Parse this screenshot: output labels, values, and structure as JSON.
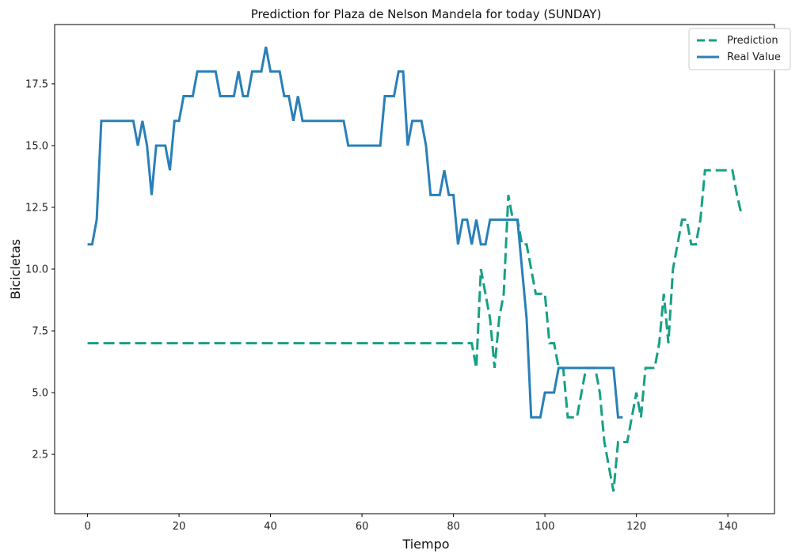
{
  "chart_data": {
    "type": "line",
    "title": "Prediction for Plaza de Nelson Mandela for today (SUNDAY)",
    "xlabel": "Tiempo",
    "ylabel": "Bicicletas",
    "xlim": [
      -7.2,
      150.2
    ],
    "ylim": [
      0.1,
      19.9
    ],
    "xticks": [
      0,
      20,
      40,
      60,
      80,
      100,
      120,
      140
    ],
    "xtick_labels": [
      "0",
      "20",
      "40",
      "60",
      "80",
      "100",
      "120",
      "140"
    ],
    "yticks": [
      2.5,
      5.0,
      7.5,
      10.0,
      12.5,
      15.0,
      17.5
    ],
    "ytick_labels": [
      "2.5",
      "5.0",
      "7.5",
      "10.0",
      "12.5",
      "15.0",
      "17.5"
    ],
    "grid": false,
    "legend": {
      "position": "top-right"
    },
    "series": [
      {
        "name": "Prediction",
        "color": "#16a085",
        "style": "dashed",
        "x": [
          0,
          84,
          85,
          86,
          87,
          88,
          89,
          90,
          91,
          92,
          93,
          94,
          95,
          96,
          97,
          98,
          99,
          100,
          101,
          102,
          103,
          104,
          105,
          106,
          107,
          108,
          109,
          110,
          111,
          112,
          113,
          114,
          115,
          116,
          117,
          118,
          119,
          120,
          121,
          122,
          123,
          124,
          125,
          126,
          127,
          128,
          129,
          130,
          131,
          132,
          133,
          134,
          135,
          136,
          137,
          138,
          139,
          140,
          141,
          142,
          143
        ],
        "y": [
          7,
          7,
          6,
          10,
          9,
          8,
          6,
          8,
          9,
          13,
          12,
          12,
          11,
          11,
          10,
          9,
          9,
          9,
          7,
          7,
          6,
          6,
          4,
          4,
          4,
          5,
          6,
          6,
          6,
          5,
          3,
          2,
          1,
          3,
          3,
          3,
          4,
          5,
          4,
          6,
          6,
          6,
          7,
          9,
          7,
          10,
          11,
          12,
          12,
          11,
          11,
          12,
          14,
          14,
          14,
          14,
          14,
          14,
          14,
          13,
          12.2
        ]
      },
      {
        "name": "Real Value",
        "color": "#2980b9",
        "style": "solid",
        "x": [
          0,
          1,
          2,
          3,
          4,
          5,
          6,
          7,
          8,
          9,
          10,
          11,
          12,
          13,
          14,
          15,
          16,
          17,
          18,
          19,
          20,
          21,
          22,
          23,
          24,
          25,
          26,
          27,
          28,
          29,
          30,
          31,
          32,
          33,
          34,
          35,
          36,
          37,
          38,
          39,
          40,
          41,
          42,
          43,
          44,
          45,
          46,
          47,
          48,
          49,
          50,
          51,
          52,
          53,
          54,
          55,
          56,
          57,
          58,
          59,
          60,
          61,
          62,
          63,
          64,
          65,
          66,
          67,
          68,
          69,
          70,
          71,
          72,
          73,
          74,
          75,
          76,
          77,
          78,
          79,
          80,
          81,
          82,
          83,
          84,
          85,
          86,
          87,
          88,
          89,
          90,
          91,
          92,
          93,
          94,
          95,
          96,
          97,
          98,
          99,
          100,
          101,
          102,
          103,
          104,
          105,
          106,
          107,
          108,
          109,
          110,
          111,
          112,
          113,
          114,
          115,
          116,
          117
        ],
        "y": [
          11,
          11,
          12,
          16,
          16,
          16,
          16,
          16,
          16,
          16,
          16,
          15,
          16,
          15,
          13,
          15,
          15,
          15,
          14,
          16,
          16,
          17,
          17,
          17,
          18,
          18,
          18,
          18,
          18,
          17,
          17,
          17,
          17,
          18,
          17,
          17,
          18,
          18,
          18,
          19,
          18,
          18,
          18,
          17,
          17,
          16,
          17,
          16,
          16,
          16,
          16,
          16,
          16,
          16,
          16,
          16,
          16,
          15,
          15,
          15,
          15,
          15,
          15,
          15,
          15,
          17,
          17,
          17,
          18,
          18,
          15,
          16,
          16,
          16,
          15,
          13,
          13,
          13,
          14,
          13,
          13,
          11,
          12,
          12,
          11,
          12,
          11,
          11,
          12,
          12,
          12,
          12,
          12,
          12,
          12,
          10,
          8,
          4,
          4,
          4,
          5,
          5,
          5,
          6,
          6,
          6,
          6,
          6,
          6,
          6,
          6,
          6,
          6,
          6,
          6,
          6,
          4,
          4
        ]
      }
    ]
  }
}
